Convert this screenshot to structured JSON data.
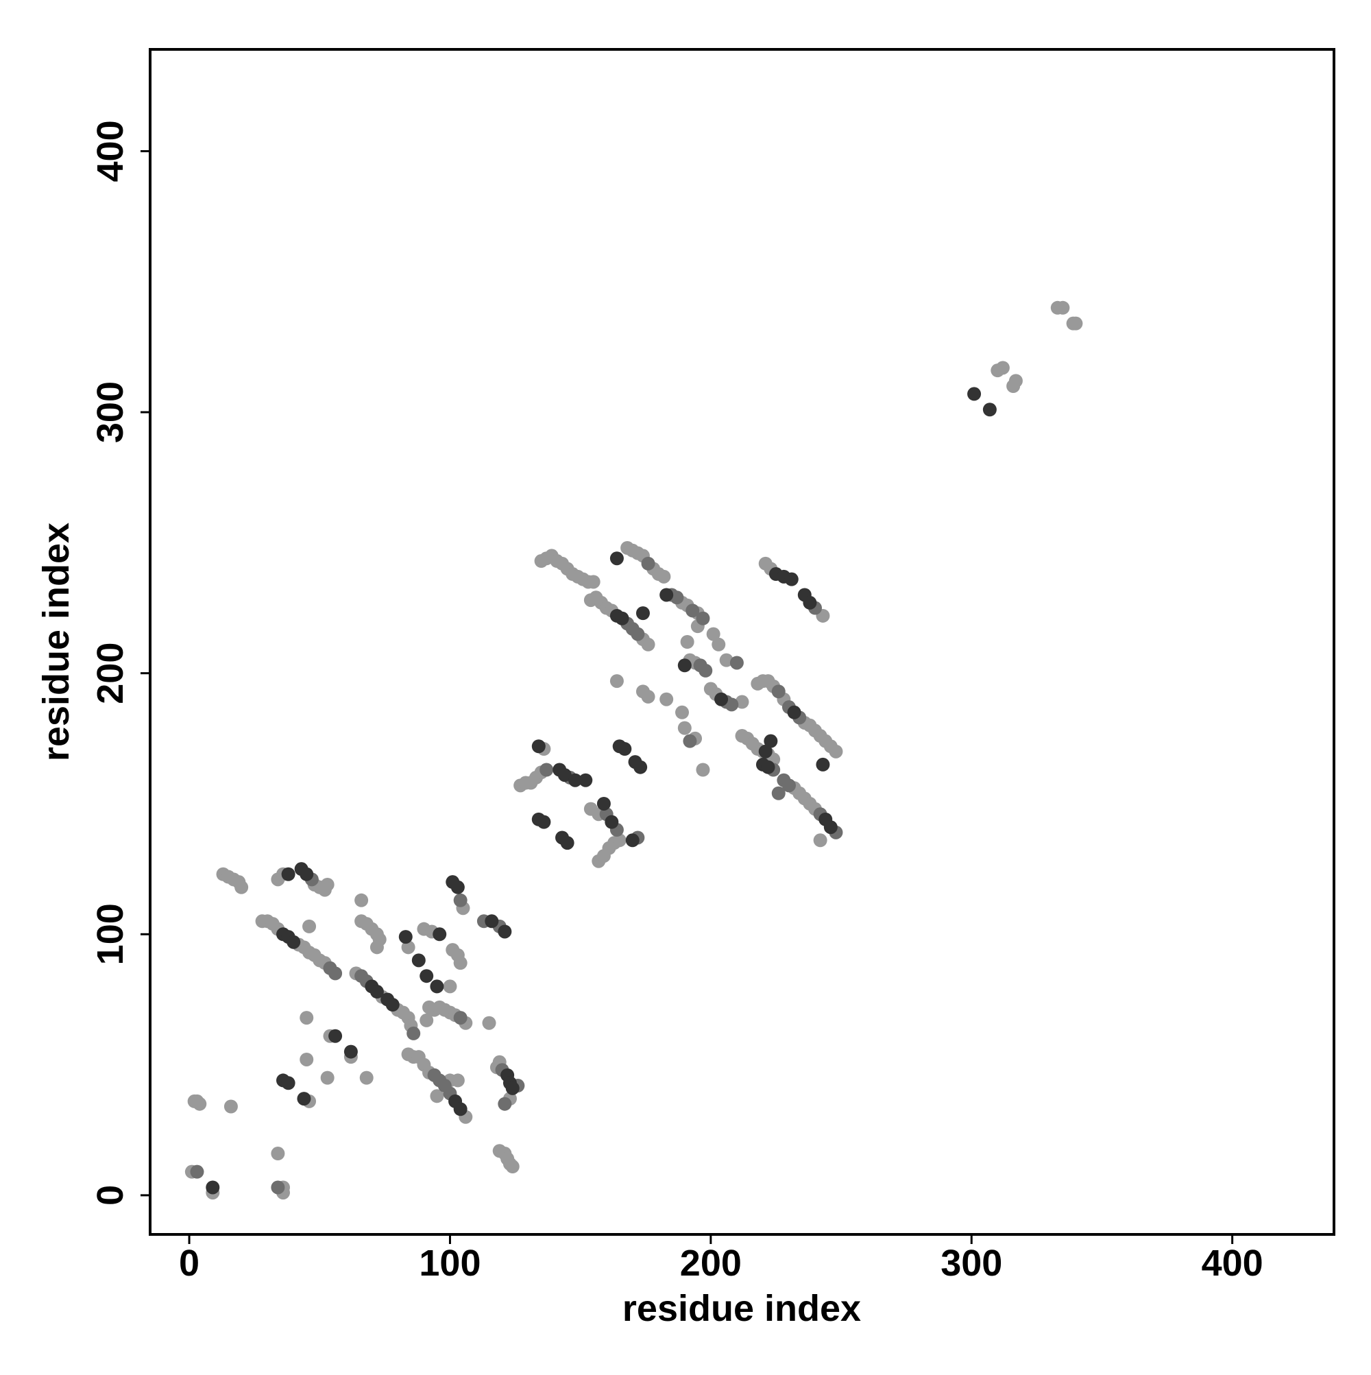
{
  "chart_data": {
    "type": "scatter",
    "xlabel": "residue index",
    "ylabel": "residue index",
    "xlim": [
      -15,
      439
    ],
    "ylim": [
      -15,
      439
    ],
    "xticks": [
      0,
      100,
      200,
      300,
      400
    ],
    "yticks": [
      0,
      100,
      200,
      300,
      400
    ],
    "series": [
      {
        "color": "#999999",
        "x": [
          1,
          9,
          2,
          3,
          4,
          16,
          34,
          36,
          36,
          13,
          15,
          17,
          19,
          20,
          34,
          36,
          48,
          50,
          52,
          53,
          28,
          30,
          32,
          34,
          42,
          44,
          46,
          48,
          50,
          52,
          46,
          64,
          74,
          80,
          82,
          84,
          85,
          66,
          68,
          70,
          72,
          73,
          72,
          66,
          84,
          100,
          90,
          93,
          84,
          86,
          88,
          90,
          92,
          95,
          100,
          103,
          106,
          92,
          94,
          96,
          98,
          100,
          102,
          106,
          91,
          101,
          103,
          104,
          105,
          45,
          45,
          54,
          62,
          68,
          53,
          46,
          115,
          118,
          119,
          119,
          121,
          122,
          123,
          124,
          123,
          127,
          129,
          131,
          133,
          135,
          136,
          154,
          157,
          159,
          161,
          163,
          165,
          164,
          157,
          135,
          137,
          139,
          141,
          143,
          145,
          147,
          149,
          151,
          153,
          155,
          154,
          156,
          158,
          160,
          162,
          174,
          176,
          168,
          170,
          172,
          174,
          178,
          180,
          182,
          189,
          191,
          195,
          195,
          191,
          174,
          176,
          183,
          192,
          194,
          194,
          189,
          197,
          190,
          201,
          203,
          206,
          200,
          202,
          212,
          221,
          223,
          243,
          218,
          220,
          222,
          224,
          228,
          236,
          238,
          240,
          242,
          244,
          246,
          248,
          212,
          214,
          216,
          218,
          220,
          222,
          224,
          232,
          234,
          236,
          238,
          240,
          242,
          310,
          312,
          316,
          317,
          333,
          335,
          339,
          340
        ],
        "values": [
          9,
          1,
          36,
          36,
          35,
          34,
          16,
          3,
          1,
          123,
          122,
          121,
          120,
          118,
          121,
          123,
          119,
          118,
          117,
          119,
          105,
          105,
          104,
          102,
          96,
          95,
          93,
          92,
          90,
          89,
          103,
          85,
          76,
          71,
          70,
          68,
          65,
          105,
          104,
          102,
          100,
          98,
          95,
          113,
          95,
          80,
          102,
          101,
          54,
          53,
          53,
          50,
          47,
          38,
          44,
          44,
          30,
          72,
          71,
          72,
          71,
          70,
          69,
          66,
          67,
          94,
          92,
          89,
          110,
          68,
          52,
          61,
          53,
          45,
          45,
          36,
          66,
          49,
          51,
          17,
          16,
          14,
          12,
          11,
          37,
          157,
          158,
          158,
          160,
          162,
          171,
          148,
          128,
          130,
          133,
          135,
          136,
          197,
          146,
          243,
          244,
          245,
          243,
          242,
          240,
          238,
          237,
          236,
          235,
          235,
          228,
          229,
          227,
          225,
          224,
          213,
          211,
          248,
          247,
          246,
          245,
          240,
          238,
          237,
          227,
          226,
          223,
          218,
          212,
          193,
          191,
          190,
          205,
          204,
          175,
          185,
          163,
          179,
          215,
          211,
          205,
          194,
          192,
          189,
          242,
          240,
          222,
          196,
          197,
          197,
          195,
          190,
          181,
          180,
          178,
          176,
          174,
          172,
          170,
          176,
          175,
          173,
          171,
          170,
          169,
          167,
          156,
          154,
          152,
          150,
          148,
          136,
          316,
          317,
          310,
          312,
          340,
          340,
          334,
          334
        ]
      },
      {
        "color": "#6e6e6e",
        "x": [
          3,
          34,
          47,
          54,
          56,
          66,
          68,
          86,
          94,
          96,
          98,
          100,
          104,
          104,
          113,
          119,
          120,
          126,
          121,
          137,
          146,
          160,
          164,
          172,
          168,
          170,
          172,
          176,
          185,
          187,
          193,
          197,
          198,
          196,
          192,
          210,
          206,
          208,
          226,
          230,
          234,
          228,
          230,
          242,
          248,
          240,
          226,
          224
        ],
        "values": [
          9,
          3,
          121,
          87,
          85,
          84,
          82,
          62,
          46,
          44,
          42,
          39,
          68,
          113,
          105,
          103,
          48,
          42,
          35,
          163,
          160,
          146,
          140,
          137,
          219,
          217,
          215,
          242,
          230,
          229,
          224,
          221,
          201,
          203,
          174,
          204,
          189,
          188,
          193,
          187,
          183,
          159,
          157,
          146,
          139,
          225,
          154,
          163
        ]
      },
      {
        "color": "#333333",
        "x": [
          9,
          36,
          38,
          44,
          56,
          62,
          38,
          43,
          45,
          36,
          38,
          40,
          70,
          72,
          76,
          78,
          83,
          88,
          91,
          95,
          96,
          102,
          104,
          101,
          103,
          116,
          121,
          122,
          123,
          124,
          134,
          134,
          136,
          143,
          145,
          142,
          144,
          148,
          152,
          159,
          162,
          165,
          167,
          171,
          173,
          170,
          164,
          166,
          174,
          164,
          183,
          190,
          204,
          225,
          228,
          231,
          236,
          238,
          232,
          220,
          222,
          223,
          221,
          243,
          244,
          246,
          301,
          307
        ],
        "values": [
          3,
          44,
          43,
          37,
          61,
          55,
          123,
          125,
          123,
          100,
          99,
          97,
          80,
          78,
          75,
          73,
          99,
          90,
          84,
          80,
          100,
          36,
          33,
          120,
          118,
          105,
          101,
          46,
          43,
          41,
          172,
          144,
          143,
          137,
          135,
          163,
          161,
          159,
          159,
          150,
          143,
          172,
          171,
          166,
          164,
          136,
          222,
          221,
          223,
          244,
          230,
          203,
          190,
          238,
          237,
          236,
          230,
          227,
          185,
          165,
          164,
          174,
          170,
          165,
          144,
          141,
          307,
          301
        ]
      }
    ]
  }
}
